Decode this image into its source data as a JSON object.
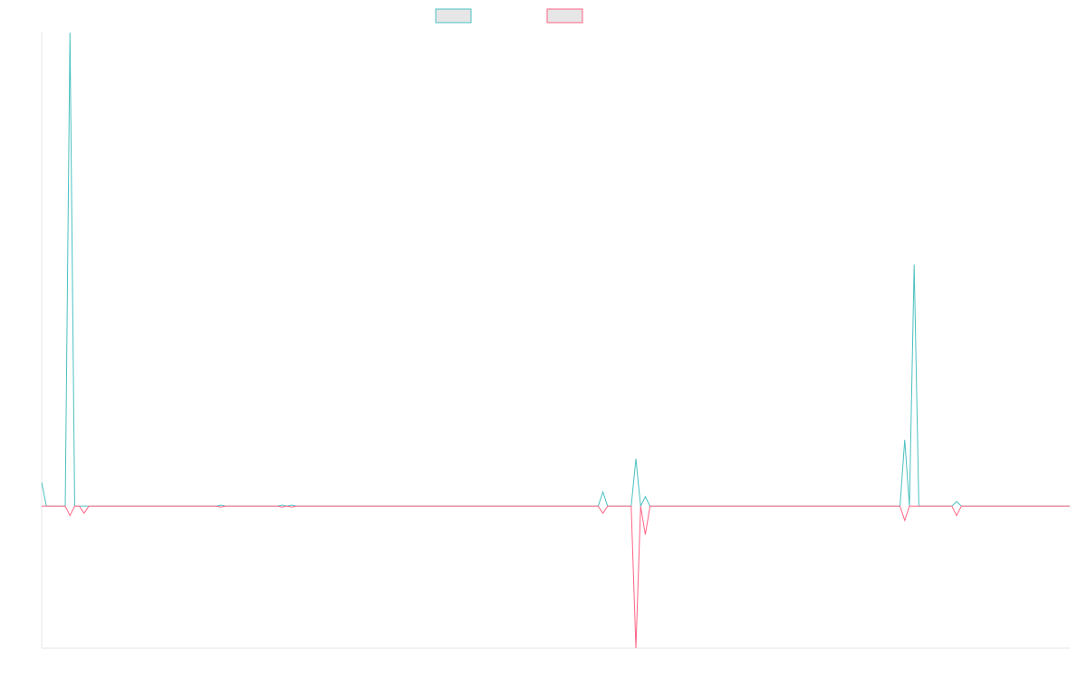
{
  "chart_data": {
    "type": "line",
    "xlim": [
      0,
      218
    ],
    "ylim": [
      -30,
      100
    ],
    "legend": "top",
    "series": [
      {
        "color": "#4bc0c0",
        "x": [
          0,
          1,
          5,
          6,
          7,
          37,
          38,
          39,
          50,
          51,
          52,
          53,
          54,
          118,
          119,
          120,
          125,
          126,
          127,
          128,
          129,
          182,
          183,
          184,
          185,
          186,
          193,
          194,
          195,
          218
        ],
        "values": [
          5,
          0,
          0,
          100,
          0,
          0,
          0.2,
          0,
          0,
          0.2,
          0,
          0.2,
          0,
          0,
          3,
          0,
          0,
          10,
          0,
          2,
          0,
          0,
          14,
          0,
          51,
          0,
          0,
          1,
          0,
          0
        ]
      },
      {
        "color": "#ff6384",
        "x": [
          0,
          5,
          6,
          7,
          8,
          9,
          10,
          37,
          38,
          39,
          50,
          51,
          52,
          53,
          54,
          118,
          119,
          120,
          125,
          126,
          127,
          128,
          129,
          182,
          183,
          184,
          193,
          194,
          195,
          218
        ],
        "values": [
          0,
          0,
          -2,
          0,
          0,
          -1.5,
          0,
          0,
          -0.2,
          0,
          0,
          -0.2,
          0,
          -0.2,
          0,
          0,
          -1.5,
          0,
          0,
          -30,
          0,
          -6,
          0,
          0,
          -3,
          0,
          0,
          -2,
          0,
          0
        ]
      }
    ]
  }
}
